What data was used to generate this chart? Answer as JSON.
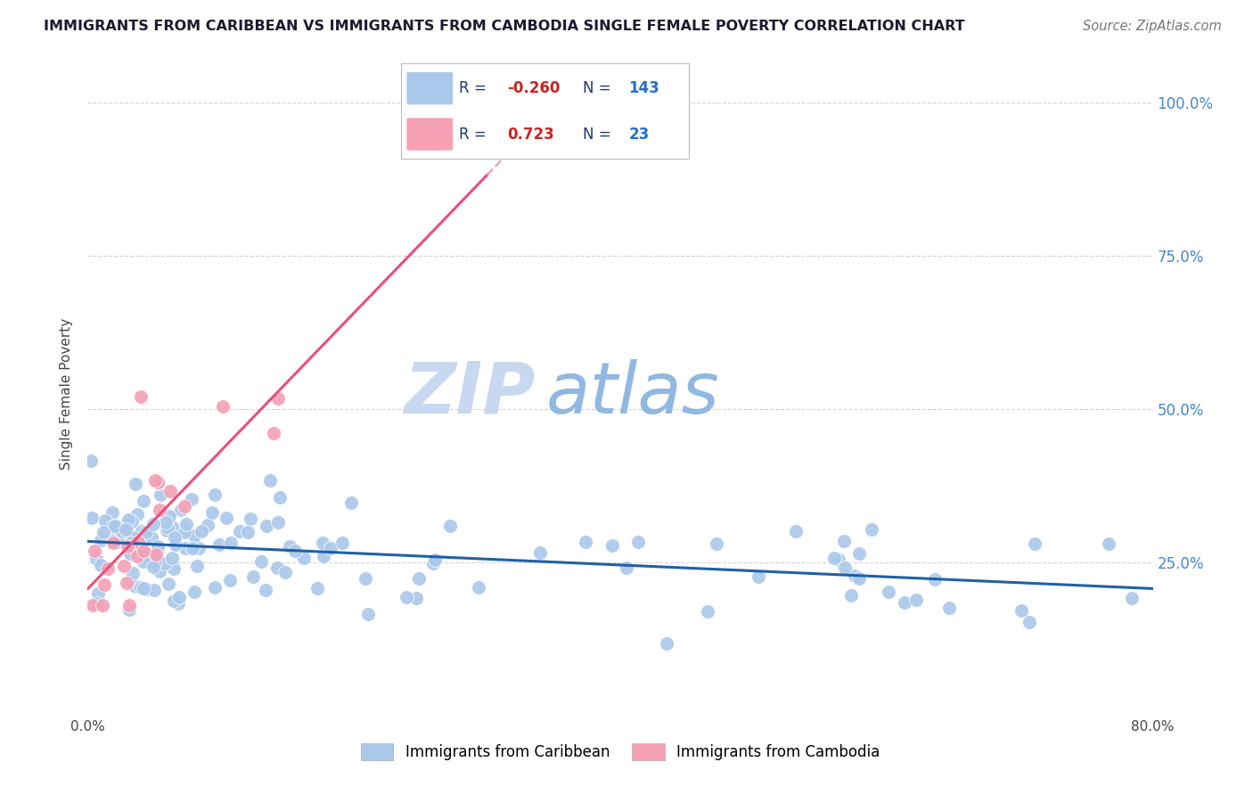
{
  "title": "IMMIGRANTS FROM CARIBBEAN VS IMMIGRANTS FROM CAMBODIA SINGLE FEMALE POVERTY CORRELATION CHART",
  "source": "Source: ZipAtlas.com",
  "ylabel": "Single Female Poverty",
  "xlim": [
    0.0,
    0.8
  ],
  "ylim": [
    0.0,
    1.05
  ],
  "ytick_labels": [
    "",
    "25.0%",
    "50.0%",
    "75.0%",
    "100.0%"
  ],
  "ytick_values": [
    0.0,
    0.25,
    0.5,
    0.75,
    1.0
  ],
  "caribbean_R": -0.26,
  "caribbean_N": 143,
  "cambodia_R": 0.723,
  "cambodia_N": 23,
  "caribbean_color": "#aac8ea",
  "cambodia_color": "#f5a0b5",
  "caribbean_line_color": "#2060a8",
  "cambodia_line_color": "#e8507a",
  "cambodia_dash_color": "#f0a0b8",
  "background_color": "#ffffff",
  "grid_color": "#c8c8c8",
  "watermark_zip_color": "#c8d8f0",
  "watermark_atlas_color": "#90b8e0",
  "legend_r_color": "#1a3a6b",
  "legend_n_color": "#2070c8",
  "r_value_color": "#cc2222",
  "title_color": "#1a1a2e",
  "source_color": "#777777",
  "right_axis_color": "#4488cc"
}
